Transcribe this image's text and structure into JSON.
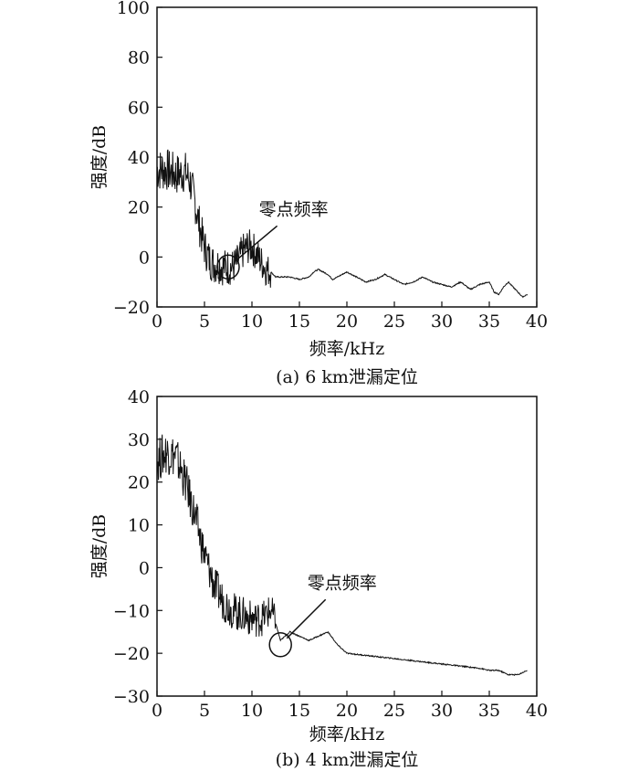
{
  "chart_data": [
    {
      "type": "line",
      "caption": "(a) 6 km泄漏定位",
      "xlabel": "频率/kHz",
      "ylabel": "强度/dB",
      "xlim": [
        0,
        40
      ],
      "ylim": [
        -20,
        100
      ],
      "xticks": [
        0,
        5,
        10,
        15,
        20,
        25,
        30,
        35,
        40
      ],
      "yticks": [
        -20,
        0,
        20,
        40,
        60,
        80,
        100
      ],
      "grid": false,
      "annotation": {
        "text": "零点频率",
        "x": 7.5,
        "y": -4
      },
      "series": [
        {
          "noise_until": 12,
          "x": [
            0,
            1,
            2,
            3,
            3.5,
            4,
            4.5,
            5,
            5.5,
            6,
            6.5,
            7,
            7.5,
            8,
            8.5,
            9,
            9.5,
            10,
            10.5,
            11,
            11.5,
            12,
            12.5,
            13,
            14,
            15,
            16,
            16.5,
            17,
            17.5,
            18,
            18.5,
            19,
            20,
            21,
            22,
            23,
            24,
            25,
            26,
            27,
            28,
            29,
            30,
            31,
            32,
            33,
            34,
            35,
            35.5,
            36,
            36.5,
            37,
            37.5,
            38,
            38.5,
            39
          ],
          "y": [
            35,
            35,
            33,
            34,
            30,
            22,
            12,
            4,
            -1,
            -3,
            -3,
            -4,
            -4,
            -4,
            -2,
            2,
            4,
            4,
            1,
            -2,
            -5,
            -6,
            -8,
            -8,
            -8,
            -9,
            -8,
            -6,
            -5,
            -6,
            -7,
            -9,
            -8,
            -6,
            -8,
            -10,
            -9,
            -7,
            -9,
            -11,
            -10,
            -8,
            -10,
            -11,
            -12,
            -10,
            -13,
            -11,
            -10,
            -14,
            -15,
            -12,
            -10,
            -12,
            -14,
            -16,
            -15
          ]
        }
      ]
    },
    {
      "type": "line",
      "caption": "(b) 4 km泄漏定位",
      "xlabel": "频率/kHz",
      "ylabel": "强度/dB",
      "xlim": [
        0,
        40
      ],
      "ylim": [
        -30,
        40
      ],
      "xticks": [
        0,
        5,
        10,
        15,
        20,
        25,
        30,
        35,
        40
      ],
      "yticks": [
        -30,
        -20,
        -10,
        0,
        10,
        20,
        30,
        40
      ],
      "grid": false,
      "annotation": {
        "text": "零点频率",
        "x": 13,
        "y": -18
      },
      "series": [
        {
          "noise_until": 12.5,
          "x": [
            0,
            1,
            2,
            3,
            4,
            5,
            6,
            7,
            8,
            9,
            10,
            11,
            12,
            12.5,
            13,
            14,
            15,
            16,
            17,
            18,
            19,
            20,
            22,
            24,
            26,
            28,
            30,
            32,
            34,
            35,
            36,
            37,
            38,
            39
          ],
          "y": [
            25,
            27,
            26,
            20,
            12,
            3,
            -4,
            -8,
            -10,
            -11,
            -12,
            -12,
            -10,
            -13,
            -17,
            -15,
            -16,
            -17,
            -16,
            -15,
            -18,
            -20,
            -20.5,
            -21,
            -21.5,
            -22,
            -22.5,
            -23,
            -23.5,
            -24,
            -24,
            -25,
            -25,
            -24
          ]
        }
      ]
    }
  ]
}
